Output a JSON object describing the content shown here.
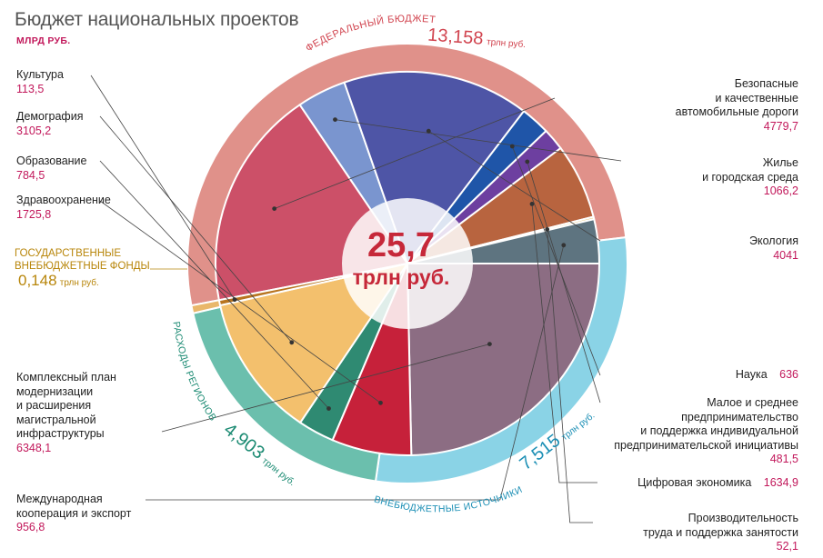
{
  "title": "Бюджет национальных проектов",
  "unit": "МЛРД РУБ.",
  "center": {
    "total": "25,7",
    "unit": "трлн руб."
  },
  "colors": {
    "federal_ring": "#e0918a",
    "offbudget_ring": "#8ad3e6",
    "regions_ring": "#6bbfad",
    "funds_ring": "#e9b76a",
    "center_circle": "#ffffff"
  },
  "rings": {
    "federal": {
      "label": "ФЕДЕРАЛЬНЫЙ БЮДЖЕТ",
      "value": "13,158",
      "unit": "трлн руб.",
      "amount": 13.158,
      "color": "#c9505f"
    },
    "offbudget": {
      "label": "ВНЕБЮДЖЕТНЫЕ ИСТОЧНИКИ",
      "value": "7,515",
      "unit": "трлн руб.",
      "amount": 7.515,
      "color": "#1c8fb5"
    },
    "regions": {
      "label": "РАСХОДЫ РЕГИОНОВ",
      "value": "4,903",
      "unit": "трлн руб.",
      "amount": 4.903,
      "color": "#1a8a72"
    },
    "funds": {
      "line1": "ГОСУДАРСТВЕННЫЕ",
      "line2": "ВНЕБЮДЖЕТНЫЕ ФОНДЫ",
      "value": "0,148",
      "unit": "трлн руб.",
      "amount": 0.148
    }
  },
  "chart_data": {
    "type": "pie",
    "title": "Бюджет национальных проектов",
    "unit": "МЛРД РУБ.",
    "slices": [
      {
        "lines": [
          "Безопасные",
          "и качественные",
          "автомобильные дороги"
        ],
        "value_text": "4779,7",
        "value": 4779.7,
        "color": "#cc5068"
      },
      {
        "lines": [
          "Жилье",
          "и городская среда"
        ],
        "value_text": "1066,2",
        "value": 1066.2,
        "color": "#7a95cf"
      },
      {
        "lines": [
          "Экология"
        ],
        "value_text": "4041",
        "value": 4041,
        "color": "#4e55a6"
      },
      {
        "lines": [
          "Наука"
        ],
        "value_text": "636",
        "value": 636,
        "color": "#1f55a8"
      },
      {
        "lines": [
          "Малое и среднее",
          "предпринимательство",
          "и поддержка индивидуальной",
          "предпринимательской инициативы"
        ],
        "value_text": "481,5",
        "value": 481.5,
        "color": "#6d3fa0"
      },
      {
        "lines": [
          "Цифровая экономика"
        ],
        "value_text": "1634,9",
        "value": 1634.9,
        "color": "#b8643f"
      },
      {
        "lines": [
          "Производительность",
          "труда и поддержка занятости"
        ],
        "value_text": "52,1",
        "value": 52.1,
        "color": "#e7c77c"
      },
      {
        "lines": [
          "Международная",
          "кооперация и экспорт"
        ],
        "value_text": "956,8",
        "value": 956.8,
        "color": "#5e7480"
      },
      {
        "lines": [
          "Комплексный план",
          "модернизации",
          "и расширения",
          "магистральной",
          "инфраструктуры"
        ],
        "value_text": "6348,1",
        "value": 6348.1,
        "color": "#8c6d83"
      },
      {
        "lines": [
          "Здравоохранение"
        ],
        "value_text": "1725,8",
        "value": 1725.8,
        "color": "#c6213a"
      },
      {
        "lines": [
          "Образование"
        ],
        "value_text": "784,5",
        "value": 784.5,
        "color": "#2f8a72"
      },
      {
        "lines": [
          "Демография"
        ],
        "value_text": "3105,2",
        "value": 3105.2,
        "color": "#f3c06d"
      },
      {
        "lines": [
          "Культура"
        ],
        "value_text": "113,5",
        "value": 113.5,
        "color": "#b8741f"
      }
    ]
  }
}
